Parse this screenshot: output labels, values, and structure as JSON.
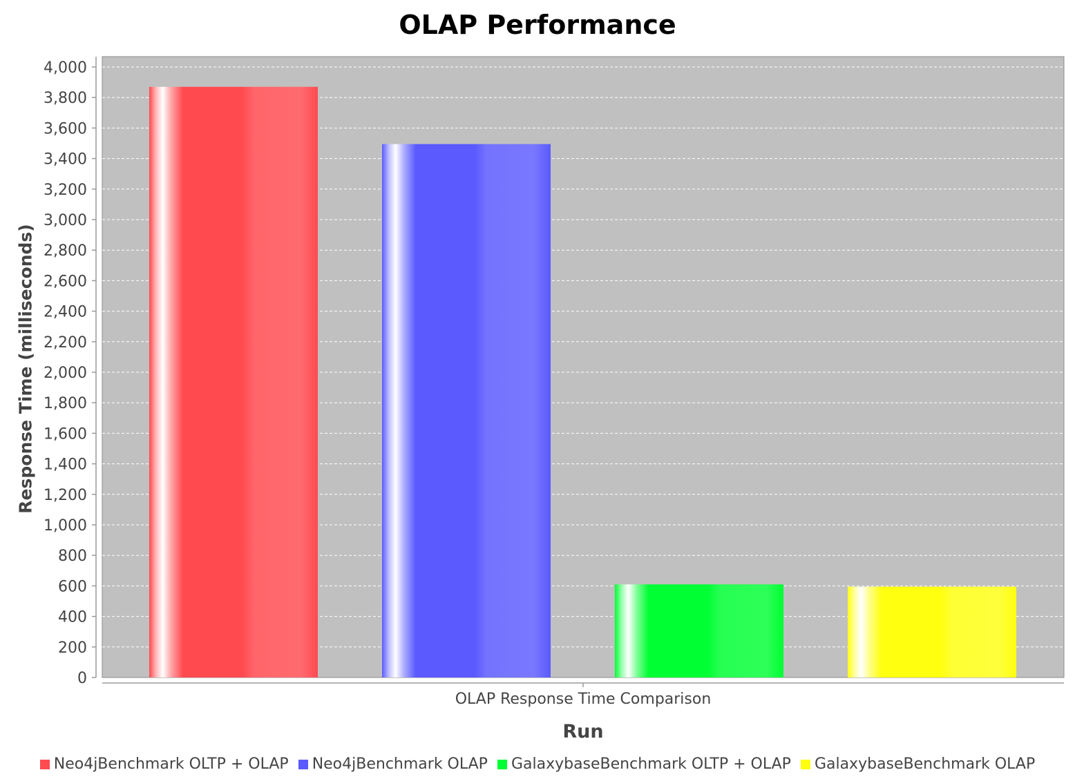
{
  "chart_data": {
    "type": "bar",
    "title": "OLAP Performance",
    "xlabel": "Run",
    "ylabel": "Response Time (milliseconds)",
    "categories": [
      "OLAP Response Time Comparison"
    ],
    "ylim": [
      0,
      4000
    ],
    "yticks": [
      "0",
      "200",
      "400",
      "600",
      "800",
      "1,000",
      "1,200",
      "1,400",
      "1,600",
      "1,800",
      "2,000",
      "2,200",
      "2,400",
      "2,600",
      "2,800",
      "3,000",
      "3,200",
      "3,400",
      "3,600",
      "3,800",
      "4,000"
    ],
    "grid": true,
    "legend_position": "bottom",
    "series": [
      {
        "name": "Neo4jBenchmark OLTP + OLAP",
        "values": [
          3870
        ],
        "color": "#ff4a50"
      },
      {
        "name": "Neo4jBenchmark OLAP",
        "values": [
          3495
        ],
        "color": "#5a5aff"
      },
      {
        "name": "GalaxybaseBenchmark OLTP + OLAP",
        "values": [
          610
        ],
        "color": "#00ff33"
      },
      {
        "name": "GalaxybaseBenchmark OLAP",
        "values": [
          595
        ],
        "color": "#ffff10"
      }
    ]
  }
}
